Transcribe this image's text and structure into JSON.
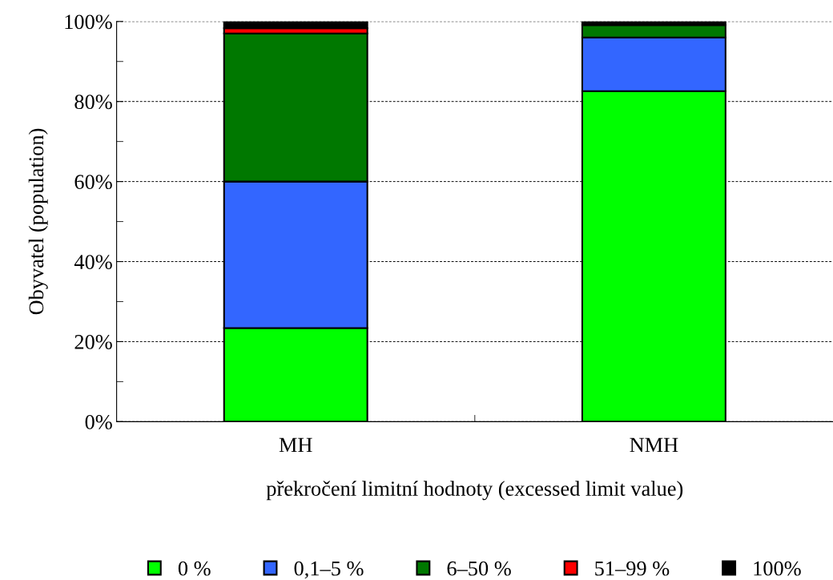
{
  "chart_data": {
    "type": "bar",
    "stacked": true,
    "xlabel": "překročení limitní hodnoty (excessed limit value)",
    "ylabel": "Obyvatel (population)",
    "categories": [
      "MH",
      "NMH"
    ],
    "series": [
      {
        "name": "0 %",
        "color": "#00ff00",
        "values": [
          23.4,
          82.6
        ]
      },
      {
        "name": "0,1–5 %",
        "color": "#3366ff",
        "values": [
          36.6,
          13.4
        ]
      },
      {
        "name": "6–50 %",
        "color": "#007800",
        "values": [
          37.0,
          3.1
        ]
      },
      {
        "name": "51–99 %",
        "color": "#ff0000",
        "values": [
          1.3,
          0
        ]
      },
      {
        "name": "100%",
        "color": "#000000",
        "values": [
          1.7,
          0.9
        ]
      }
    ],
    "ylim": [
      0,
      100
    ],
    "yticks": [
      {
        "value": 0,
        "label": "0%"
      },
      {
        "value": 20,
        "label": "20%"
      },
      {
        "value": 40,
        "label": "40%"
      },
      {
        "value": 60,
        "label": "60%"
      },
      {
        "value": 80,
        "label": "80%"
      },
      {
        "value": 100,
        "label": "100%"
      }
    ],
    "grid": "y",
    "legend": "bottom"
  }
}
